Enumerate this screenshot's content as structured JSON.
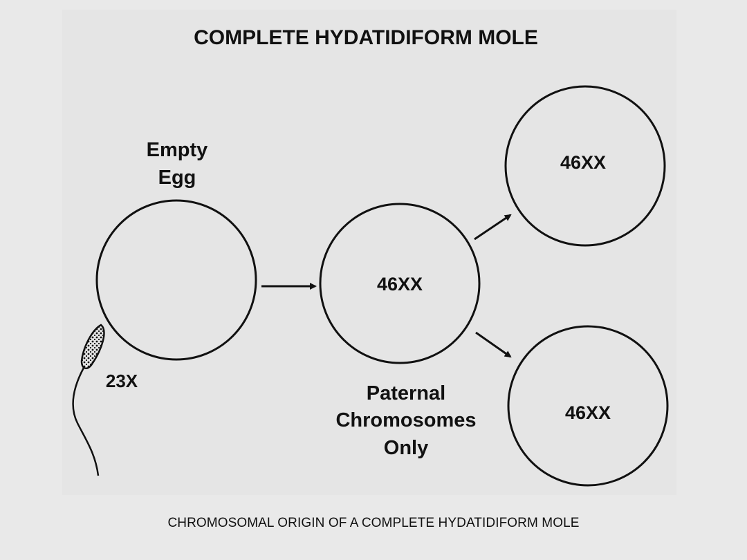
{
  "title": "COMPLETE HYDATIDIFORM MOLE",
  "egg_label_line1": "Empty",
  "egg_label_line2": "Egg",
  "sperm_label": "23X",
  "center_cell_label": "46XX",
  "top_cell_label": "46XX",
  "bottom_cell_label": "46XX",
  "paternal_label_line1": "Paternal",
  "paternal_label_line2": "Chromosomes",
  "paternal_label_line3": "Only",
  "caption": "CHROMOSOMAL ORIGIN OF A COMPLETE HYDATIDIFORM MOLE",
  "colors": {
    "background": "#e9e9e9",
    "ink": "#111111"
  }
}
